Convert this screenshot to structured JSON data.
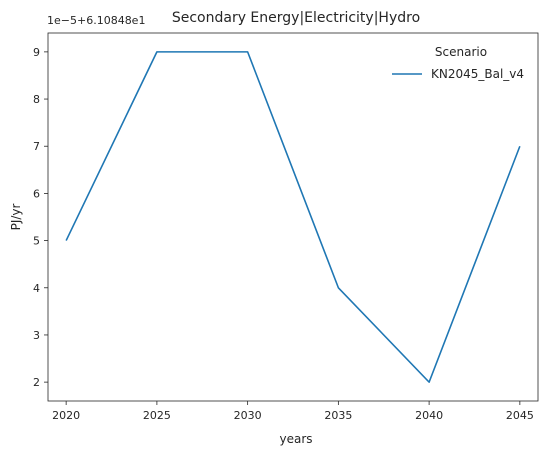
{
  "chart_data": {
    "type": "line",
    "title": "Secondary Energy|Electricity|Hydro",
    "xlabel": "years",
    "ylabel": "PJ/yr",
    "y_offset_label": "1e−5+6.10848e1",
    "x": [
      2020,
      2025,
      2030,
      2035,
      2040,
      2045
    ],
    "x_ticks": [
      "2020",
      "2025",
      "2030",
      "2035",
      "2040",
      "2045"
    ],
    "y_ticks": [
      "2",
      "3",
      "4",
      "5",
      "6",
      "7",
      "8",
      "9"
    ],
    "ylim": [
      1.6,
      9.4
    ],
    "xlim": [
      2019,
      2046
    ],
    "series": [
      {
        "name": "KN2045_Bal_v4",
        "color": "#1f77b4",
        "values": [
          5,
          9,
          9,
          4,
          2,
          7
        ]
      }
    ],
    "legend": {
      "title": "Scenario",
      "placement": "top-right"
    },
    "grid": false
  }
}
